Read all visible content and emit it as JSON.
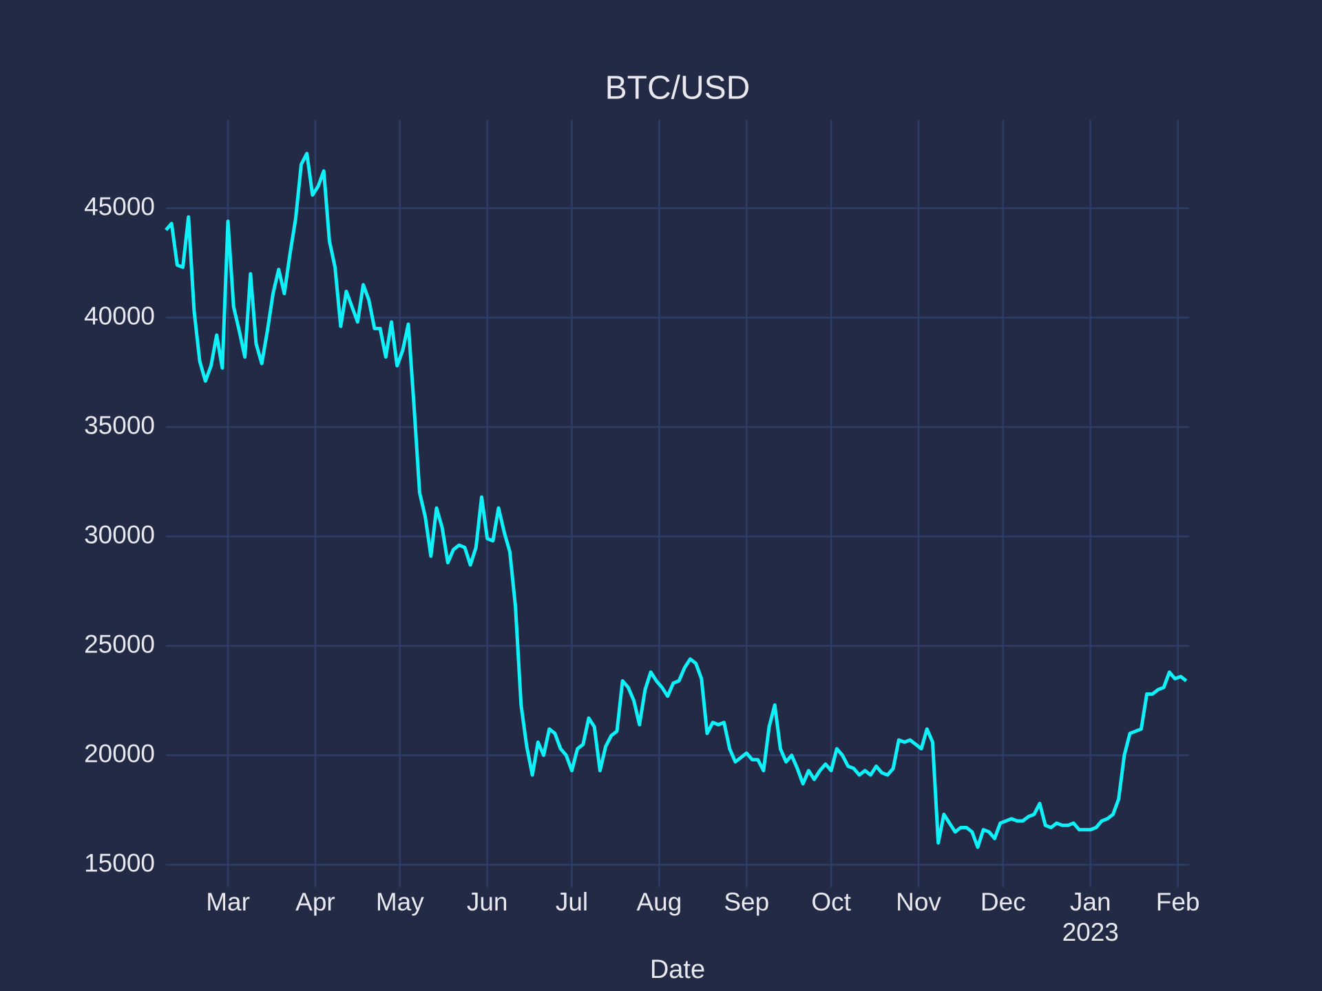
{
  "chart_data": {
    "type": "line",
    "title": "BTC/USD",
    "x_label": "Date",
    "xlim": [
      0,
      363
    ],
    "ylim": [
      14230,
      49040
    ],
    "xticks": [
      {
        "value": 22,
        "label": "Mar"
      },
      {
        "value": 53,
        "label": "Apr"
      },
      {
        "value": 83,
        "label": "May"
      },
      {
        "value": 114,
        "label": "Jun"
      },
      {
        "value": 144,
        "label": "Jul"
      },
      {
        "value": 175,
        "label": "Aug"
      },
      {
        "value": 206,
        "label": "Sep"
      },
      {
        "value": 236,
        "label": "Oct"
      },
      {
        "value": 267,
        "label": "Nov"
      },
      {
        "value": 297,
        "label": "Dec"
      },
      {
        "value": 328,
        "label": "Jan",
        "sublabel": "2023"
      },
      {
        "value": 359,
        "label": "Feb"
      }
    ],
    "yticks": [
      15000,
      20000,
      25000,
      30000,
      35000,
      40000,
      45000
    ],
    "grid": true,
    "series": [
      {
        "name": "BTC/USD",
        "color": "#10f0f8",
        "x": [
          0,
          2,
          4,
          6,
          8,
          10,
          12,
          14,
          16,
          18,
          20,
          22,
          24,
          26,
          28,
          30,
          32,
          34,
          36,
          38,
          40,
          42,
          44,
          46,
          48,
          50,
          52,
          54,
          56,
          58,
          60,
          62,
          64,
          66,
          68,
          70,
          72,
          74,
          76,
          78,
          80,
          82,
          84,
          86,
          88,
          90,
          92,
          94,
          96,
          98,
          100,
          102,
          104,
          106,
          108,
          110,
          112,
          114,
          116,
          118,
          120,
          122,
          124,
          126,
          128,
          130,
          132,
          134,
          136,
          138,
          140,
          142,
          144,
          146,
          148,
          150,
          152,
          154,
          156,
          158,
          160,
          162,
          164,
          166,
          168,
          170,
          172,
          174,
          176,
          178,
          180,
          182,
          184,
          186,
          188,
          190,
          192,
          194,
          196,
          198,
          200,
          202,
          204,
          206,
          208,
          210,
          212,
          214,
          216,
          218,
          220,
          222,
          224,
          226,
          228,
          230,
          232,
          234,
          236,
          238,
          240,
          242,
          244,
          246,
          248,
          250,
          252,
          254,
          256,
          258,
          260,
          262,
          264,
          266,
          268,
          270,
          272,
          274,
          276,
          278,
          280,
          282,
          284,
          286,
          288,
          290,
          292,
          294,
          296,
          298,
          300,
          302,
          304,
          306,
          308,
          310,
          312,
          314,
          316,
          318,
          320,
          322,
          324,
          326,
          328,
          330,
          332,
          334,
          336,
          338,
          340,
          342,
          344,
          346,
          348,
          350,
          352,
          354,
          356,
          358,
          360,
          362
        ],
        "values": [
          44000,
          44300,
          42400,
          42300,
          44600,
          40300,
          38000,
          37100,
          37800,
          39200,
          37700,
          44400,
          40500,
          39400,
          38200,
          42000,
          38800,
          37900,
          39400,
          41100,
          42200,
          41100,
          42900,
          44500,
          47000,
          47500,
          45600,
          46000,
          46700,
          43500,
          42300,
          39600,
          41200,
          40500,
          39800,
          41500,
          40800,
          39500,
          39500,
          38200,
          39800,
          37800,
          38500,
          39700,
          36000,
          32000,
          30900,
          29100,
          31300,
          30400,
          28800,
          29400,
          29600,
          29500,
          28700,
          29500,
          31800,
          29900,
          29800,
          31300,
          30200,
          29300,
          26800,
          22300,
          20400,
          19100,
          20600,
          20000,
          21200,
          21000,
          20300,
          20000,
          19300,
          20300,
          20500,
          21700,
          21300,
          19300,
          20400,
          20900,
          21100,
          23400,
          23100,
          22500,
          21400,
          23000,
          23800,
          23400,
          23100,
          22700,
          23300,
          23400,
          24000,
          24400,
          24200,
          23500,
          21000,
          21500,
          21400,
          21500,
          20300,
          19700,
          19900,
          20100,
          19800,
          19800,
          19300,
          21300,
          22300,
          20300,
          19700,
          20000,
          19400,
          18700,
          19300,
          18900,
          19300,
          19600,
          19300,
          20300,
          20000,
          19500,
          19400,
          19100,
          19300,
          19100,
          19500,
          19200,
          19100,
          19400,
          20700,
          20600,
          20700,
          20500,
          20300,
          21200,
          20600,
          16000,
          17300,
          16900,
          16500,
          16700,
          16700,
          16500,
          15800,
          16600,
          16500,
          16200,
          16900,
          17000,
          17100,
          17000,
          17000,
          17200,
          17300,
          17800,
          16800,
          16700,
          16900,
          16800,
          16800,
          16900,
          16600,
          16600,
          16600,
          16700,
          17000,
          17100,
          17300,
          18000,
          20000,
          21000,
          21100,
          21200,
          22800,
          22800,
          23000,
          23100,
          23800,
          23500,
          23600,
          23400
        ]
      }
    ]
  }
}
